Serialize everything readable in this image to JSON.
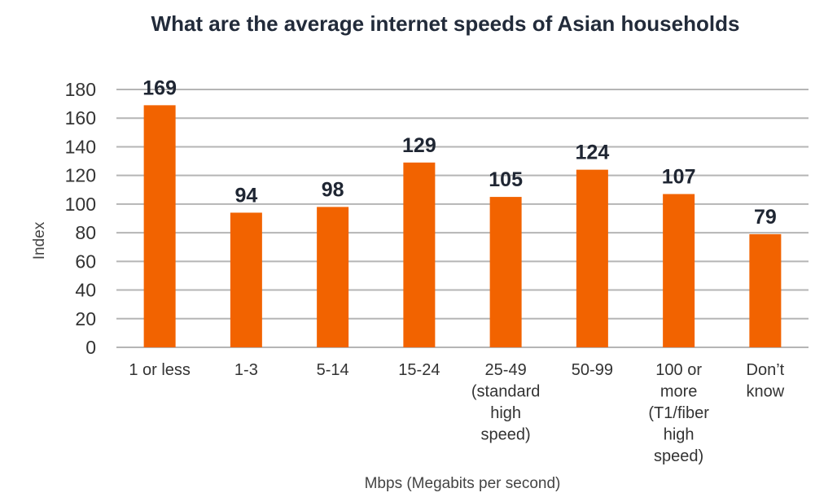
{
  "chart_data": {
    "type": "bar",
    "title": "What are the average internet speeds of Asian households",
    "xlabel": "Mbps (Megabits per second)",
    "ylabel": "Index",
    "ylim": [
      0,
      180
    ],
    "yticks": [
      0,
      20,
      40,
      60,
      80,
      100,
      120,
      140,
      160,
      180
    ],
    "grid": true,
    "categories": [
      [
        "1 or less"
      ],
      [
        "1-3"
      ],
      [
        "5-14"
      ],
      [
        "15-24"
      ],
      [
        "25-49",
        "(standard",
        "high",
        "speed)"
      ],
      [
        "50-99"
      ],
      [
        "100 or",
        "more",
        "(T1/fiber",
        "high",
        "speed)"
      ],
      [
        "Don’t",
        "know"
      ]
    ],
    "values": [
      169,
      94,
      98,
      129,
      105,
      124,
      107,
      79
    ],
    "bar_color": "#f26300"
  }
}
